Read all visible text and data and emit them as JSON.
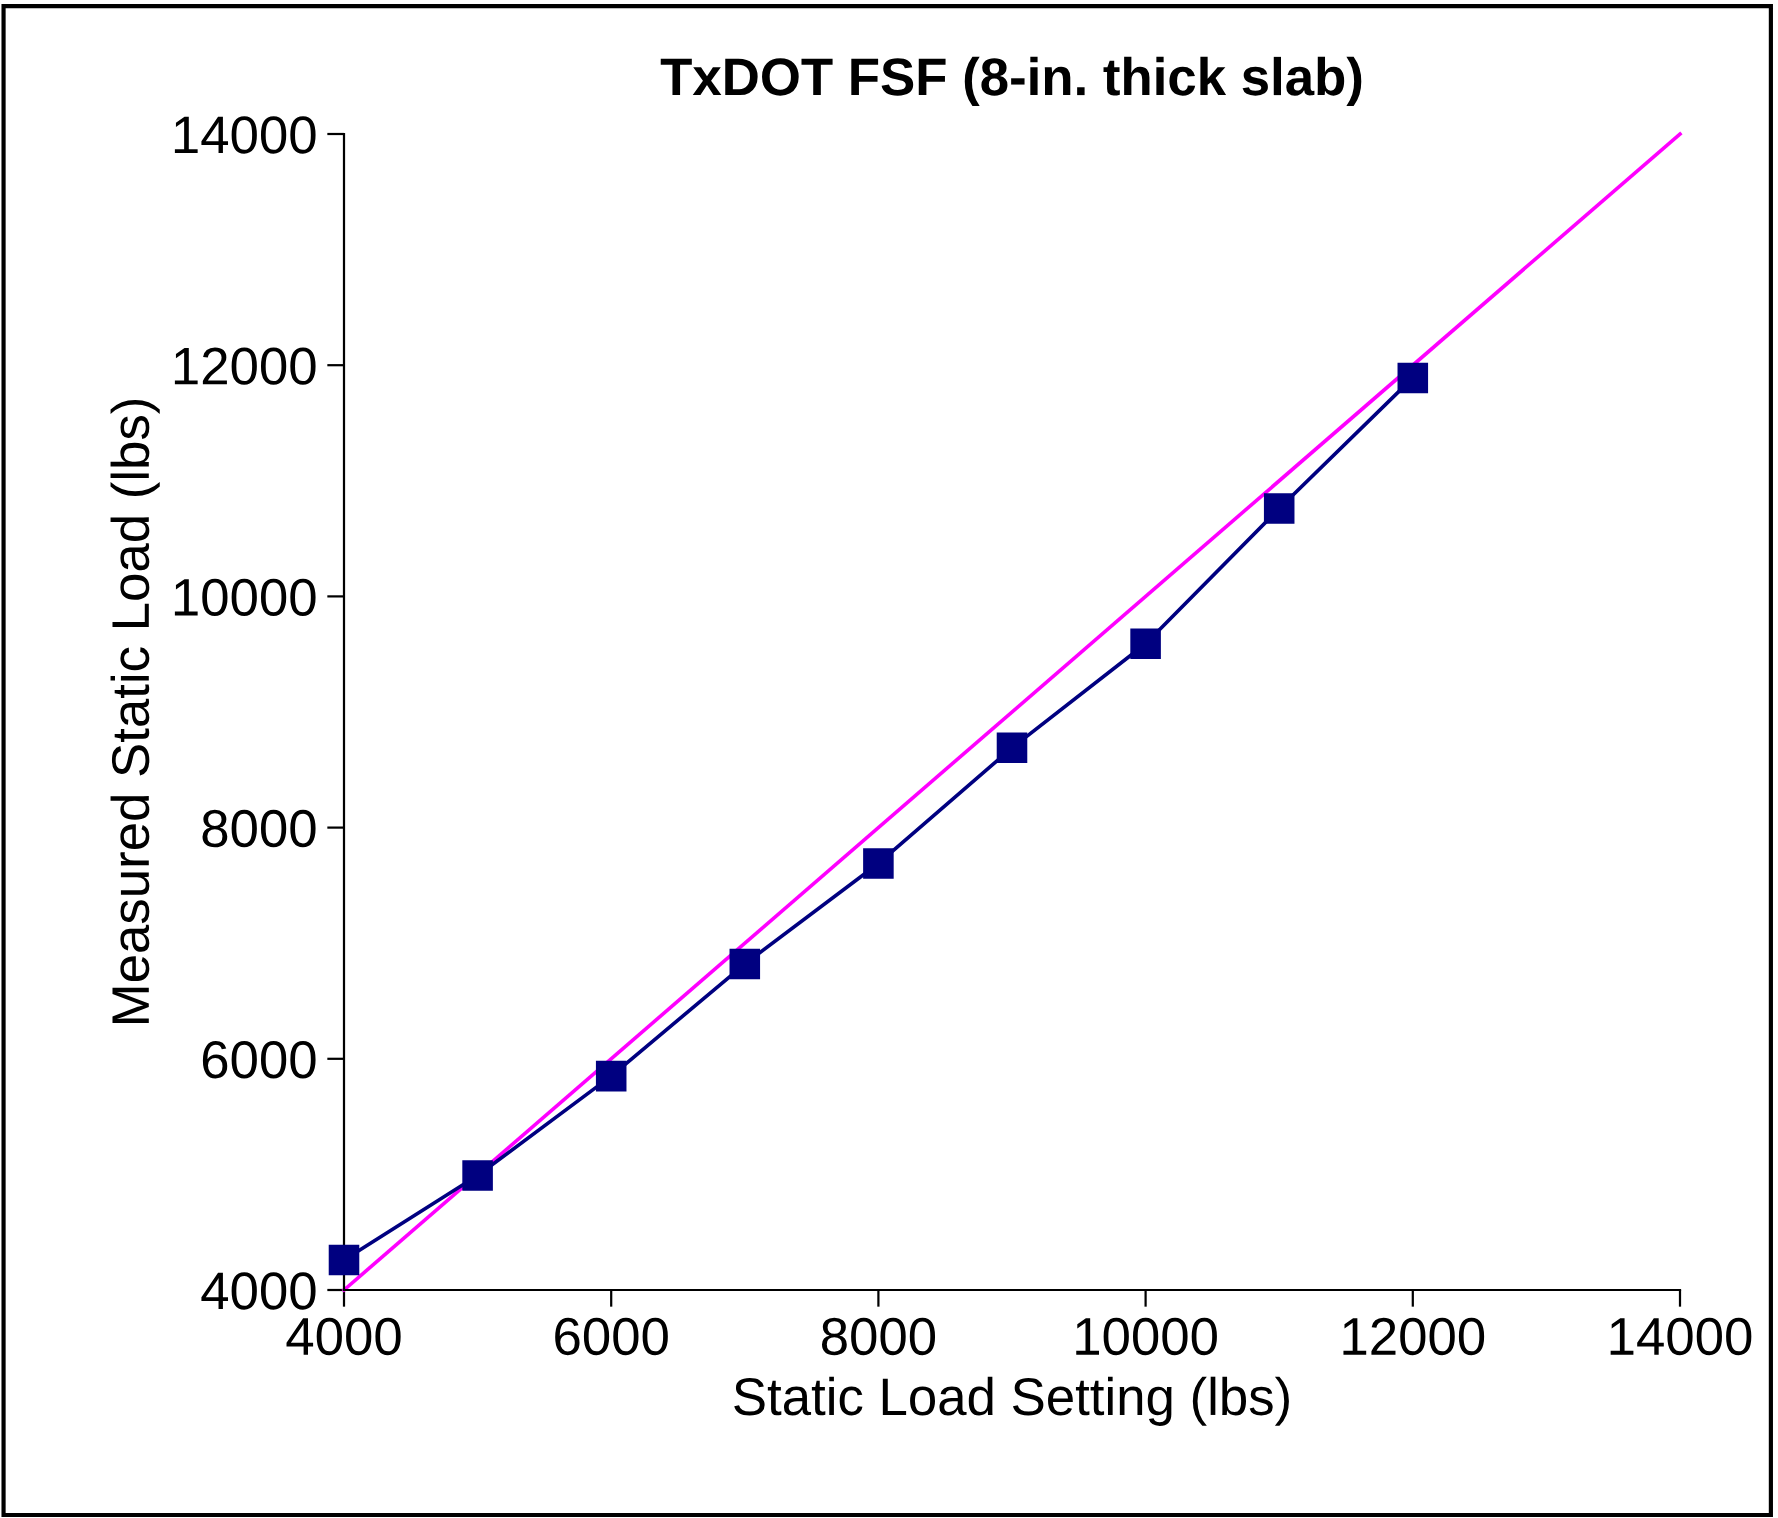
{
  "chart_data": {
    "type": "line",
    "title": "TxDOT FSF (8-in. thick slab)",
    "xlabel": "Static Load Setting (lbs)",
    "ylabel": "Measured Static Load (lbs)",
    "x": [
      4000,
      5000,
      6000,
      7000,
      8000,
      9000,
      10000,
      11000,
      12000
    ],
    "series": [
      {
        "color": "#000080",
        "marker": "square",
        "values": [
          4260,
          4990,
          5850,
          6820,
          7690,
          8690,
          9590,
          10760,
          11890
        ]
      },
      {
        "color": "#ff00ff",
        "marker": "none",
        "x": [
          4000,
          14000
        ],
        "values": [
          4000,
          14000
        ]
      }
    ],
    "xlim": [
      4000,
      14000
    ],
    "ylim": [
      4000,
      14000
    ],
    "xticks": [
      4000,
      6000,
      8000,
      10000,
      12000,
      14000
    ],
    "yticks": [
      4000,
      6000,
      8000,
      10000,
      12000,
      14000
    ],
    "grid": false,
    "legend": false,
    "line_style": "solid"
  }
}
